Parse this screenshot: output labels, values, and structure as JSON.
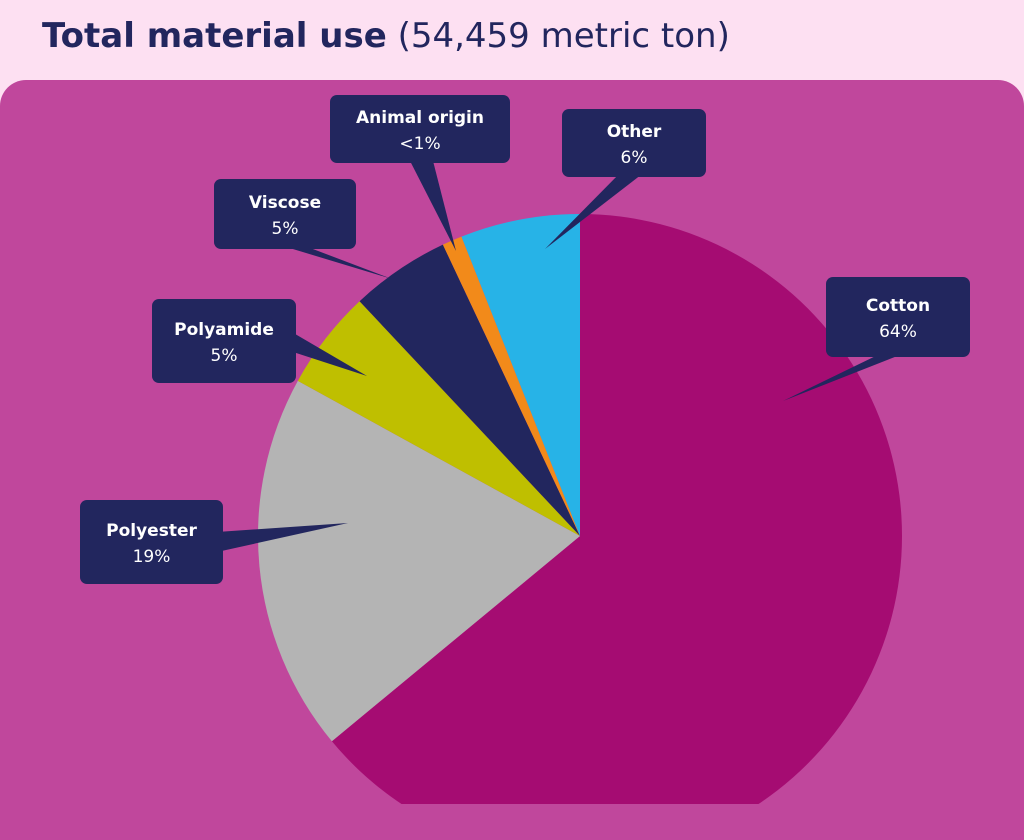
{
  "title": {
    "main": "Total material use",
    "sub": "(54,459 metric ton)"
  },
  "colors": {
    "background": "#c0479c",
    "header": "#fde0f2",
    "callout": "#22265e",
    "title": "#22265e"
  },
  "chart_data": {
    "type": "pie",
    "start": "12 o'clock, clockwise",
    "slices": [
      {
        "label": "Cotton",
        "value": 64,
        "display": "64%",
        "color": "#a50c72"
      },
      {
        "label": "Polyester",
        "value": 19,
        "display": "19%",
        "color": "#b4b4b4"
      },
      {
        "label": "Polyamide",
        "value": 5,
        "display": "5%",
        "color": "#bfbf00"
      },
      {
        "label": "Viscose",
        "value": 5,
        "display": "5%",
        "color": "#22265e"
      },
      {
        "label": "Animal origin",
        "value": 1,
        "display": "<1%",
        "color": "#f28a1a"
      },
      {
        "label": "Other",
        "value": 6,
        "display": "6%",
        "color": "#27b3e7"
      }
    ]
  }
}
